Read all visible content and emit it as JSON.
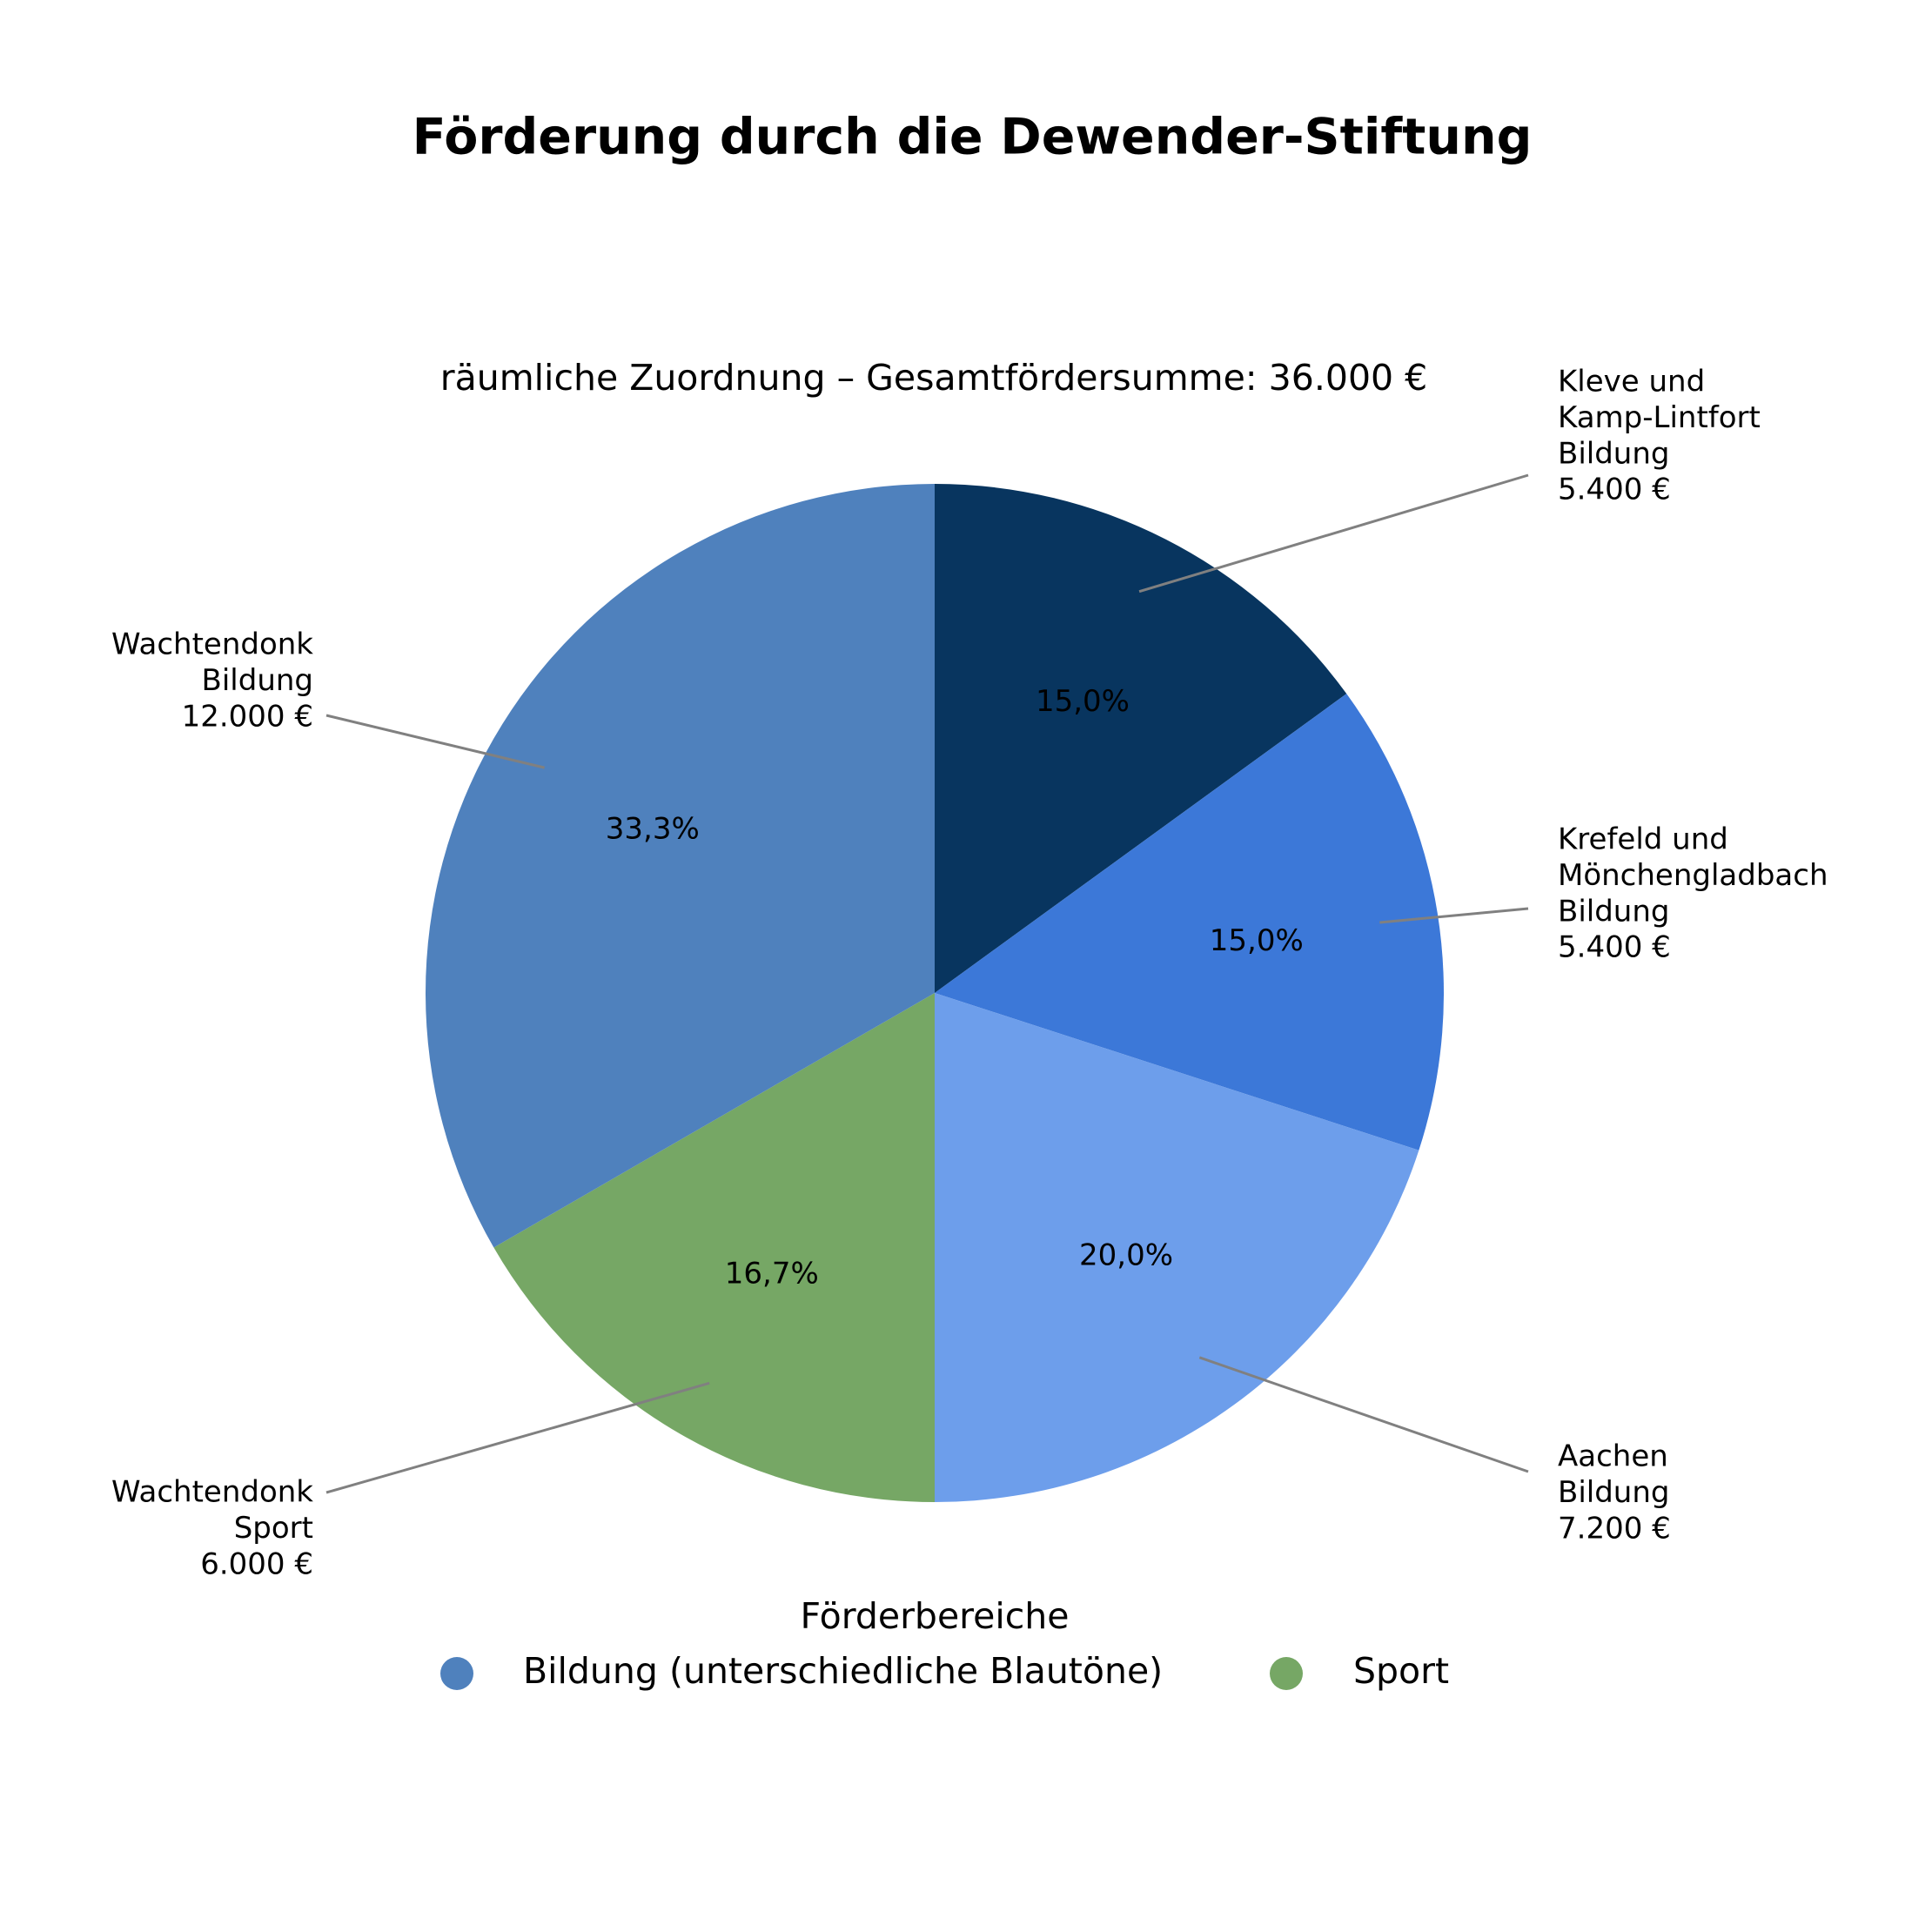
{
  "chart_data": {
    "type": "pie",
    "title": "Förderung durch die Dewender-Stiftung",
    "subtitle": "räumliche Zuordnung – Gesamtfördersumme: 36.000 €",
    "categories": [
      [
        "Kleve und",
        "Kamp-Lintfort"
      ],
      [
        "Krefeld und",
        "Mönchengladbach"
      ],
      [
        "Aachen"
      ],
      [
        "Wachtendonk"
      ],
      [
        "Wachtendonk"
      ]
    ],
    "groups": [
      "Bildung",
      "Bildung",
      "Bildung",
      "Sport",
      "Bildung"
    ],
    "values": [
      5400,
      5400,
      7200,
      6000,
      12000
    ],
    "value_labels": [
      "5.400 €",
      "5.400 €",
      "7.200 €",
      "6.000 €",
      "12.000 €"
    ],
    "percent_labels": [
      "15,0%",
      "15,0%",
      "20,0%",
      "16,7%",
      "33,3%"
    ],
    "colors": [
      "#08355f",
      "#3c78d8",
      "#6d9eeb",
      "#76a765",
      "#4f81bd"
    ],
    "legend": {
      "title": "Förderbereiche",
      "entries": [
        {
          "name": "Bildung (unterschiedliche Blautöne)",
          "color": "#4f81bd"
        },
        {
          "name": "Sport",
          "color": "#76a765"
        }
      ]
    }
  }
}
